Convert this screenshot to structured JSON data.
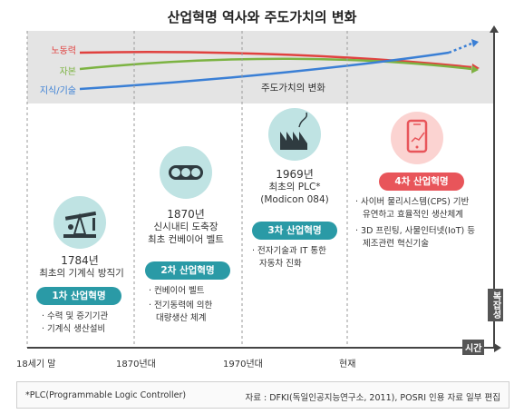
{
  "title": "산업혁명 역사와 주도가치의 변화",
  "trends": {
    "caption": "주도가치의 변화",
    "labor": {
      "label": "노동력",
      "color": "#e0413f"
    },
    "capital": {
      "label": "자본",
      "color": "#7cb342"
    },
    "knowledge": {
      "label": "지식/기술",
      "color": "#3a7fd5"
    }
  },
  "eras": [
    {
      "year": "1784년",
      "desc": "최초의 기계식 방직기",
      "badge": "1차 산업혁명",
      "badge_color": "#2a9aa6",
      "bullets": [
        "수력 및 증기기관",
        "기계식 생산설비"
      ]
    },
    {
      "year": "1870년",
      "desc1": "신시내티 도축장",
      "desc2": "최초 컨베이어 벨트",
      "badge": "2차 산업혁명",
      "badge_color": "#2a9aa6",
      "bullets": [
        "컨베이어 벨트",
        "전기동력에 의한",
        "대량생산 체계"
      ]
    },
    {
      "year": "1969년",
      "desc1": "최초의 PLC*",
      "desc2": "(Modicon 084)",
      "badge": "3차 산업혁명",
      "badge_color": "#2a9aa6",
      "bullets": [
        "전자기술과 IT 통한",
        "자동차 진화"
      ]
    },
    {
      "year": "",
      "badge": "4차 산업혁명",
      "badge_color": "#e8555a",
      "bullets": [
        "사이버 물리시스템(CPS) 기반",
        "유연하고 효율적인 생산체계",
        "3D 프린팅, 사물인터넷(IoT) 등",
        "제조관련 혁신기술"
      ]
    }
  ],
  "axis": {
    "x_label": "시간",
    "y_label": "복잡성",
    "ticks": [
      "18세기 말",
      "1870년대",
      "1970년대",
      "현재"
    ]
  },
  "footer": {
    "note": "*PLC(Programmable Logic Controller)",
    "source": "자료 : DFKI(독일인공지능연구소, 2011), POSRI 인용 자료 일부 편집"
  },
  "colors": {
    "teal_circle": "#bfe3e3",
    "pink_circle": "#fbd3d1",
    "axis": "#444444"
  }
}
